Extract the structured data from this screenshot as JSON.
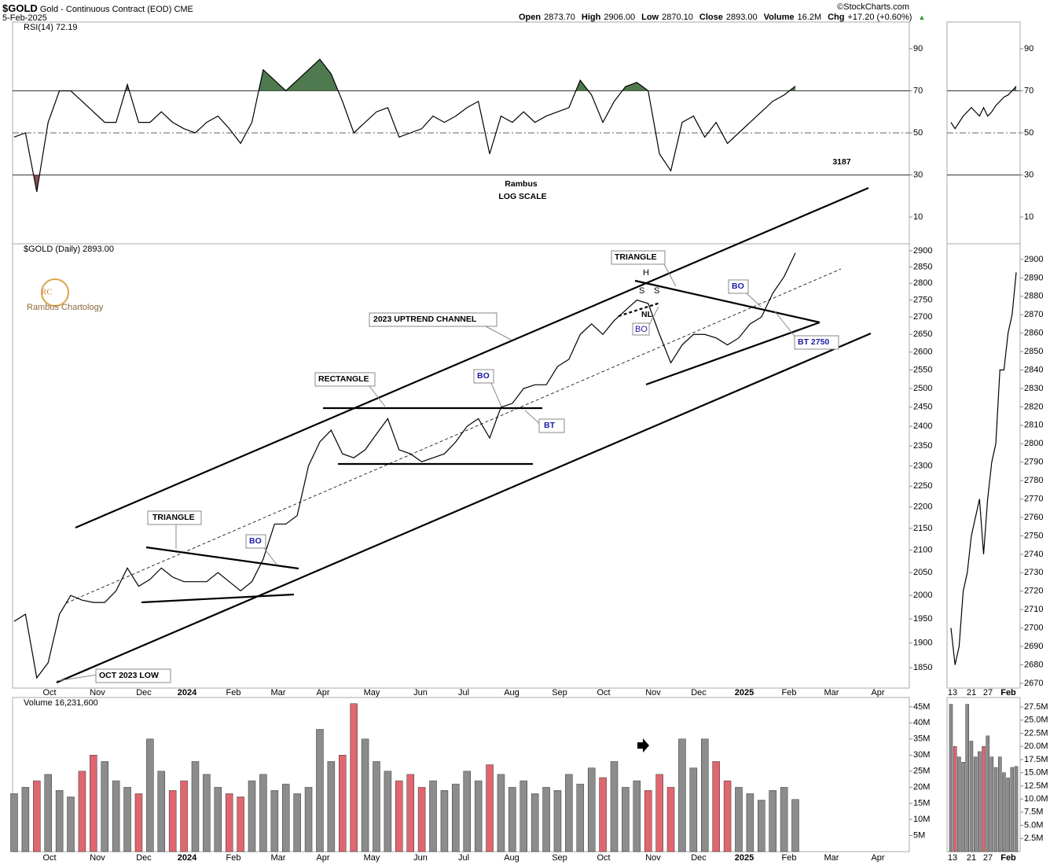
{
  "header": {
    "symbol": "$GOLD",
    "name": "Gold - Continuous Contract (EOD)",
    "exchange": "CME",
    "date": "5-Feb-2025",
    "copyright": "©StockCharts.com",
    "stats": [
      {
        "label": "Open",
        "value": "2873.70"
      },
      {
        "label": "High",
        "value": "2906.00"
      },
      {
        "label": "Low",
        "value": "2870.10"
      },
      {
        "label": "Close",
        "value": "2893.00"
      },
      {
        "label": "Volume",
        "value": "16.2M"
      },
      {
        "label": "Chg",
        "value": "+17.20 (+0.60%)"
      }
    ]
  },
  "logo": {
    "initials": "RC",
    "name": "Rambus Chartology"
  },
  "annotations": [
    "TRIANGLE",
    "BO",
    "RECTANGLE",
    "BO",
    "BT",
    "2023 UPTREND CHANNEL",
    "TRIANGLE",
    "BO",
    "BO",
    "BT 2750",
    "OCT 2023 LOW",
    "H",
    "S",
    "S",
    "NL",
    "Rambus",
    "LOG SCALE",
    "3187"
  ],
  "chart_data": [
    {
      "type": "line",
      "title": "RSI(14) 72.19",
      "color": "#000000",
      "above_color": "#4f7a4f",
      "below_color": "#8a4f4f",
      "levels": [
        30,
        70
      ],
      "midline": 50,
      "values": [
        48,
        50,
        22,
        55,
        70,
        70,
        65,
        60,
        55,
        55,
        73,
        55,
        55,
        60,
        55,
        52,
        50,
        55,
        58,
        52,
        45,
        55,
        80,
        75,
        70,
        75,
        80,
        85,
        78,
        65,
        50,
        55,
        60,
        62,
        48,
        50,
        52,
        58,
        55,
        58,
        62,
        65,
        40,
        58,
        55,
        60,
        55,
        58,
        60,
        62,
        75,
        68,
        55,
        65,
        72,
        74,
        70,
        40,
        32,
        55,
        58,
        48,
        55,
        45,
        50,
        55,
        60,
        65,
        68,
        72.19
      ],
      "ylim": [
        -2.7,
        102.7
      ],
      "yticks": [
        10,
        30,
        50,
        70,
        90
      ]
    },
    {
      "type": "line",
      "title": "$GOLD (Daily) 2893.00",
      "color": "#000000",
      "log_scale": true,
      "values": [
        1945,
        1960,
        1830,
        1860,
        1960,
        2000,
        1990,
        1985,
        1985,
        2010,
        2060,
        2020,
        2035,
        2060,
        2040,
        2030,
        2030,
        2030,
        2050,
        2030,
        2010,
        2030,
        2080,
        2160,
        2160,
        2180,
        2300,
        2360,
        2390,
        2330,
        2320,
        2340,
        2380,
        2420,
        2340,
        2330,
        2310,
        2320,
        2330,
        2360,
        2400,
        2420,
        2370,
        2450,
        2460,
        2500,
        2510,
        2510,
        2560,
        2580,
        2650,
        2680,
        2650,
        2690,
        2720,
        2750,
        2740,
        2650,
        2570,
        2620,
        2650,
        2650,
        2640,
        2620,
        2640,
        2680,
        2700,
        2770,
        2820,
        2893
      ],
      "ylim": [
        1810,
        2922
      ],
      "yticks": [
        1850,
        1900,
        1950,
        2000,
        2050,
        2100,
        2150,
        2200,
        2250,
        2300,
        2350,
        2400,
        2450,
        2500,
        2550,
        2600,
        2650,
        2700,
        2750,
        2800,
        2850,
        2900
      ],
      "x_labels": [
        "Oct",
        "Nov",
        "Dec",
        "2024",
        "Feb",
        "Mar",
        "Apr",
        "May",
        "Jun",
        "Jul",
        "Aug",
        "Sep",
        "Oct",
        "Nov",
        "Dec",
        "2025",
        "Feb",
        "Mar",
        "Apr"
      ]
    },
    {
      "type": "bar",
      "title": "Volume 16,231,600",
      "up_color": "#8c8c8c",
      "down_color": "#e06670",
      "values": [
        18,
        20,
        22,
        24,
        19,
        17,
        25,
        30,
        28,
        22,
        20,
        18,
        35,
        25,
        19,
        22,
        28,
        24,
        20,
        18,
        17,
        22,
        24,
        19,
        21,
        18,
        20,
        38,
        28,
        30,
        46,
        35,
        28,
        25,
        22,
        24,
        20,
        22,
        19,
        21,
        25,
        22,
        27,
        24,
        20,
        22,
        18,
        20,
        19,
        24,
        21,
        26,
        23,
        28,
        20,
        22,
        19,
        24,
        20,
        35,
        26,
        35,
        28,
        22,
        20,
        18,
        16,
        19,
        20,
        16.2
      ],
      "ylim": [
        0,
        47.9
      ],
      "yticks": [
        {
          "value": 5,
          "label": "5M"
        },
        {
          "value": 10,
          "label": "10M"
        },
        {
          "value": 15,
          "label": "15M"
        },
        {
          "value": 20,
          "label": "20M"
        },
        {
          "value": 25,
          "label": "25M"
        },
        {
          "value": 30,
          "label": "30M"
        },
        {
          "value": 35,
          "label": "35M"
        },
        {
          "value": 40,
          "label": "40M"
        },
        {
          "value": 45,
          "label": "45M"
        }
      ],
      "x_labels": [
        "Oct",
        "Nov",
        "Dec",
        "2024",
        "Feb",
        "Mar",
        "Apr",
        "May",
        "Jun",
        "Jul",
        "Aug",
        "Sep",
        "Oct",
        "Nov",
        "Dec",
        "2025",
        "Feb",
        "Mar",
        "Apr"
      ]
    },
    {
      "type": "line",
      "color": "#000000",
      "above_color": "#4f7a4f",
      "below_color": "#8a4f4f",
      "levels": [
        30,
        70
      ],
      "midline": 50,
      "values": [
        55,
        52,
        55,
        58,
        60,
        62,
        60,
        58,
        62,
        58,
        60,
        63,
        65,
        67,
        68,
        70,
        72.19
      ],
      "ylim": [
        -2.7,
        102.7
      ],
      "yticks": [
        10,
        30,
        50,
        70,
        90
      ]
    },
    {
      "type": "line",
      "color": "#000000",
      "values": [
        2700,
        2680,
        2690,
        2720,
        2730,
        2750,
        2760,
        2770,
        2740,
        2770,
        2790,
        2800,
        2840,
        2840,
        2860,
        2870,
        2893
      ],
      "ylim": [
        2667.4,
        2908.5
      ],
      "yticks": [
        2670,
        2680,
        2690,
        2700,
        2710,
        2720,
        2730,
        2740,
        2750,
        2760,
        2770,
        2780,
        2790,
        2800,
        2810,
        2820,
        2830,
        2840,
        2850,
        2860,
        2870,
        2880,
        2890,
        2900
      ],
      "x_labels": [
        "13",
        "21",
        "27",
        "Feb"
      ]
    },
    {
      "type": "bar",
      "up_color": "#8c8c8c",
      "down_color": "#e06670",
      "values": [
        28,
        20,
        18,
        17,
        28,
        21,
        18,
        19,
        20,
        22,
        18,
        16,
        18,
        15,
        14,
        16,
        16.2
      ],
      "ylim": [
        0,
        29.3
      ],
      "yticks": [
        {
          "value": 2.5,
          "label": "2.5M"
        },
        {
          "value": 5,
          "label": "5.0M"
        },
        {
          "value": 7.5,
          "label": "7.5M"
        },
        {
          "value": 10,
          "label": "10.0M"
        },
        {
          "value": 12.5,
          "label": "12.5M"
        },
        {
          "value": 15,
          "label": "15.0M"
        },
        {
          "value": 17.5,
          "label": "17.5M"
        },
        {
          "value": 20,
          "label": "20.0M"
        },
        {
          "value": 22.5,
          "label": "22.5M"
        },
        {
          "value": 25,
          "label": "25.0M"
        },
        {
          "value": 27.5,
          "label": "27.5M"
        }
      ],
      "x_labels": [
        "13",
        "21",
        "27",
        "Feb"
      ]
    }
  ]
}
